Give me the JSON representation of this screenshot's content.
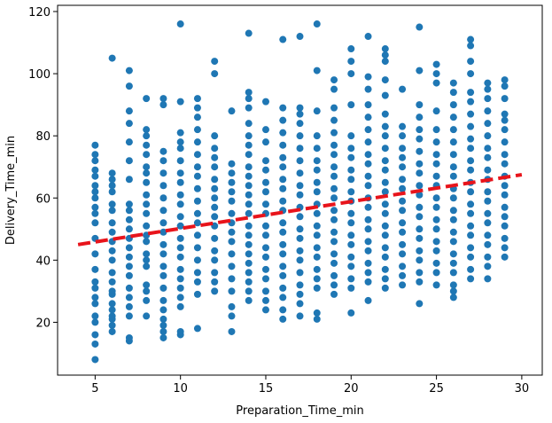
{
  "chart_data": {
    "type": "scatter",
    "xlabel": "Preparation_Time_min",
    "ylabel": "Delivery_Time_min",
    "xlim": [
      2.8,
      31.2
    ],
    "ylim": [
      3,
      122
    ],
    "xticks": [
      5,
      10,
      15,
      20,
      25,
      30
    ],
    "yticks": [
      20,
      40,
      60,
      80,
      100,
      120
    ],
    "grid": false,
    "point_color": "#1f77b4",
    "points": {
      "5": [
        8,
        13,
        16,
        20,
        22,
        26,
        28,
        31,
        33,
        37,
        42,
        47,
        52,
        55,
        57,
        60,
        62,
        64,
        67,
        69,
        72,
        74,
        77
      ],
      "6": [
        17,
        19,
        21,
        22,
        24,
        26,
        29,
        30,
        33,
        36,
        40,
        43,
        46,
        49,
        52,
        56,
        58,
        62,
        64,
        66,
        68,
        105
      ],
      "7": [
        14,
        15,
        22,
        25,
        28,
        31,
        35,
        38,
        41,
        44,
        47,
        50,
        53,
        56,
        58,
        66,
        72,
        78,
        84,
        88,
        96,
        101
      ],
      "8": [
        22,
        27,
        30,
        32,
        38,
        40,
        42,
        46,
        48,
        51,
        55,
        58,
        61,
        65,
        68,
        70,
        74,
        77,
        80,
        82,
        92
      ],
      "9": [
        15,
        17,
        19,
        21,
        24,
        27,
        31,
        35,
        38,
        42,
        45,
        49,
        52,
        56,
        60,
        64,
        68,
        72,
        75,
        90,
        92
      ],
      "10": [
        16,
        17,
        25,
        28,
        31,
        34,
        37,
        41,
        44,
        47,
        51,
        54,
        58,
        61,
        65,
        68,
        72,
        76,
        78,
        81,
        91,
        116
      ],
      "11": [
        18,
        29,
        33,
        36,
        40,
        44,
        48,
        52,
        55,
        59,
        63,
        67,
        70,
        74,
        78,
        82,
        86,
        89,
        92
      ],
      "12": [
        30,
        33,
        36,
        40,
        43,
        47,
        51,
        54,
        57,
        60,
        63,
        66,
        70,
        73,
        76,
        80,
        100,
        104
      ],
      "13": [
        17,
        22,
        25,
        30,
        34,
        38,
        42,
        46,
        49,
        52,
        55,
        59,
        62,
        65,
        68,
        71,
        88
      ],
      "14": [
        27,
        30,
        33,
        36,
        39,
        42,
        45,
        48,
        51,
        55,
        58,
        61,
        64,
        67,
        70,
        74,
        77,
        80,
        84,
        89,
        92,
        94,
        113
      ],
      "15": [
        24,
        27,
        30,
        34,
        37,
        41,
        44,
        48,
        51,
        55,
        58,
        62,
        65,
        69,
        72,
        78,
        82,
        91
      ],
      "16": [
        21,
        24,
        28,
        31,
        35,
        38,
        42,
        45,
        49,
        52,
        56,
        59,
        63,
        66,
        70,
        73,
        77,
        81,
        85,
        89,
        111
      ],
      "17": [
        22,
        26,
        29,
        32,
        36,
        40,
        43,
        47,
        50,
        54,
        57,
        61,
        64,
        68,
        72,
        76,
        80,
        84,
        87,
        89,
        112
      ],
      "18": [
        21,
        23,
        31,
        34,
        37,
        41,
        44,
        48,
        51,
        55,
        58,
        62,
        65,
        69,
        72,
        76,
        80,
        88,
        101,
        116
      ],
      "19": [
        29,
        32,
        35,
        39,
        42,
        46,
        49,
        53,
        56,
        60,
        63,
        67,
        70,
        74,
        77,
        81,
        85,
        89,
        95,
        98
      ],
      "20": [
        23,
        31,
        34,
        38,
        41,
        45,
        48,
        52,
        55,
        59,
        62,
        66,
        69,
        73,
        76,
        80,
        90,
        100,
        104,
        108
      ],
      "21": [
        27,
        33,
        36,
        39,
        43,
        46,
        50,
        53,
        57,
        60,
        64,
        67,
        71,
        74,
        78,
        82,
        86,
        90,
        95,
        99,
        112
      ],
      "22": [
        31,
        34,
        37,
        41,
        44,
        48,
        51,
        55,
        58,
        62,
        65,
        69,
        72,
        76,
        80,
        83,
        87,
        93,
        98,
        104,
        106,
        108
      ],
      "23": [
        32,
        35,
        38,
        42,
        45,
        49,
        52,
        56,
        59,
        63,
        66,
        70,
        73,
        76,
        80,
        83,
        95
      ],
      "24": [
        26,
        33,
        36,
        40,
        43,
        47,
        50,
        54,
        57,
        61,
        64,
        68,
        71,
        75,
        79,
        82,
        86,
        90,
        101,
        115
      ],
      "25": [
        32,
        36,
        39,
        43,
        46,
        50,
        53,
        57,
        60,
        64,
        67,
        71,
        74,
        78,
        82,
        88,
        97,
        100,
        103
      ],
      "26": [
        28,
        30,
        32,
        36,
        39,
        42,
        46,
        49,
        53,
        56,
        60,
        63,
        67,
        70,
        74,
        78,
        82,
        86,
        90,
        94,
        97
      ],
      "27": [
        34,
        37,
        41,
        44,
        48,
        51,
        55,
        58,
        62,
        65,
        69,
        72,
        76,
        79,
        83,
        87,
        91,
        94,
        100,
        104,
        109,
        111
      ],
      "28": [
        34,
        38,
        41,
        45,
        48,
        52,
        55,
        59,
        62,
        66,
        69,
        73,
        76,
        80,
        84,
        88,
        92,
        95,
        97
      ],
      "29": [
        41,
        44,
        47,
        51,
        54,
        57,
        61,
        64,
        67,
        71,
        74,
        78,
        82,
        85,
        87,
        92,
        96,
        98
      ]
    },
    "trend_line": {
      "x": [
        4,
        30
      ],
      "y": [
        45,
        67.5
      ],
      "style": "dashed",
      "color": "#e8141b"
    }
  }
}
